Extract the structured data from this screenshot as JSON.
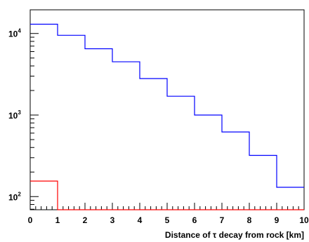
{
  "chart_data": {
    "type": "step",
    "xlabel": "Distance of τ decay from rock [km]",
    "ylabel": "",
    "x_edges": [
      0,
      1,
      2,
      3,
      4,
      5,
      6,
      7,
      8,
      9,
      10
    ],
    "xlim": [
      0,
      10
    ],
    "ylim": [
      69,
      19500
    ],
    "y_scale": "log",
    "x_ticks": [
      "0",
      "1",
      "2",
      "3",
      "4",
      "5",
      "6",
      "7",
      "8",
      "9",
      "10"
    ],
    "y_ticks": [
      {
        "value": 100,
        "base": "10",
        "exp": "2"
      },
      {
        "value": 1000,
        "base": "10",
        "exp": "3"
      },
      {
        "value": 10000,
        "base": "10",
        "exp": "4"
      }
    ],
    "series": [
      {
        "color": "#0000ff",
        "values": [
          13000,
          9500,
          6500,
          4500,
          2800,
          1700,
          1000,
          620,
          320,
          130
        ]
      },
      {
        "color": "#ff0000",
        "values": [
          155,
          69,
          69,
          69,
          69,
          69,
          69,
          69,
          69,
          69
        ]
      }
    ]
  }
}
